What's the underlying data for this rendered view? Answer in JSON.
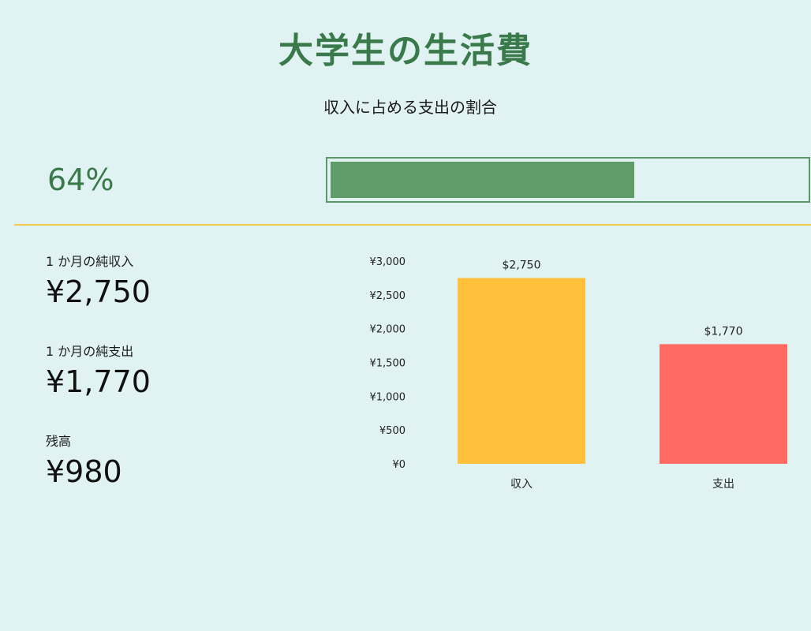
{
  "page": {
    "title": "大学生の生活費",
    "subtitle": "収入に占める支出の割合"
  },
  "ratio": {
    "label": "64%",
    "value": 0.64
  },
  "colors": {
    "accent": "#3a7a4a",
    "progress_fill": "#5f9c6a",
    "divider": "#f0c94a",
    "income_bar": "#ffc13b",
    "expense_bar": "#ff6b61",
    "background": "#e0f2f2"
  },
  "summary": {
    "income_label": "1 か月の純収入",
    "income_value": "¥2,750",
    "expense_label": "1 か月の純支出",
    "expense_value": "¥1,770",
    "balance_label": "残高",
    "balance_value": "¥980"
  },
  "chart_data": {
    "type": "bar",
    "categories": [
      "収入",
      "支出"
    ],
    "values": [
      2750,
      1770
    ],
    "data_labels": [
      "$2,750",
      "$1,770"
    ],
    "colors": [
      "#ffc13b",
      "#ff6b61"
    ],
    "ylim": [
      0,
      3000
    ],
    "yticks": [
      0,
      500,
      1000,
      1500,
      2000,
      2500,
      3000
    ],
    "ytick_labels": [
      "¥0",
      "¥500",
      "¥1,000",
      "¥1,500",
      "¥2,000",
      "¥2,500",
      "¥3,000"
    ],
    "grid": false,
    "legend": "none"
  }
}
